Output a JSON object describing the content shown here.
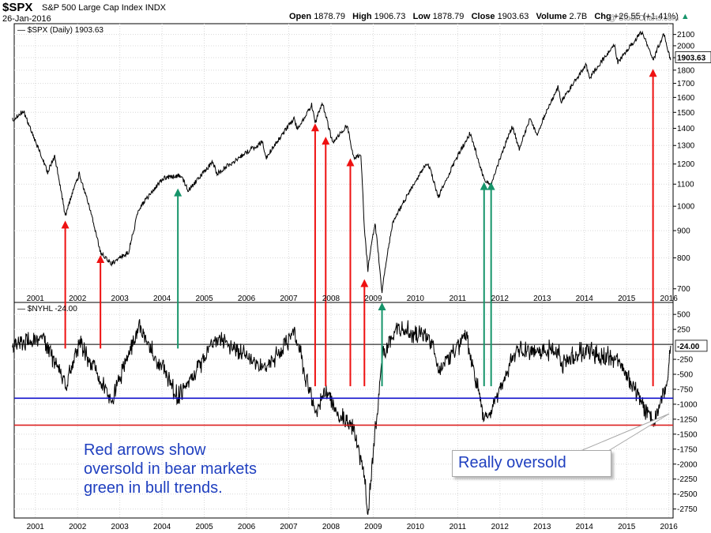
{
  "header": {
    "symbol": "$SPX",
    "name": "S&P 500 Large Cap Index",
    "exchange": "INDX",
    "date": "26-Jan-2016",
    "open_label": "Open",
    "open": "1878.79",
    "high_label": "High",
    "high": "1906.73",
    "low_label": "Low",
    "low": "1878.79",
    "close_label": "Close",
    "close": "1903.63",
    "volume_label": "Volume",
    "volume": "2.7B",
    "chg_label": "Chg",
    "chg": "+26.55 (+1.41%)",
    "watermark": "@ StockCharts.com"
  },
  "annotations": {
    "note_lines": [
      "Red arrows show",
      "oversold in bear markets",
      "green in bull trends."
    ],
    "callout": "Really oversold"
  },
  "colors": {
    "bear_arrow": "#ee1111",
    "bull_arrow": "#16946a",
    "blue_line": "#1111cc",
    "red_line": "#dd2222",
    "note_text": "#1f3fbf"
  },
  "chart_data": [
    {
      "type": "line",
      "legend": "$SPX (Daily) 1903.63",
      "last_label": "1903.63",
      "scale": "log",
      "ylim": [
        660,
        2200
      ],
      "y_ticks": [
        700,
        800,
        900,
        1000,
        1100,
        1200,
        1300,
        1400,
        1500,
        1600,
        1700,
        1800,
        1900,
        2000,
        2100
      ],
      "x_ticks": [
        "2001",
        "2002",
        "2003",
        "2004",
        "2005",
        "2006",
        "2007",
        "2008",
        "2009",
        "2010",
        "2011",
        "2012",
        "2013",
        "2014",
        "2015",
        "2016"
      ],
      "x": [
        "2000-06",
        "2000-09",
        "2001-01",
        "2001-04",
        "2001-06",
        "2001-09",
        "2002-01",
        "2002-07",
        "2002-10",
        "2003-03",
        "2003-06",
        "2004-01",
        "2004-06",
        "2004-08",
        "2005-03",
        "2005-04",
        "2006-05",
        "2006-06",
        "2007-02",
        "2007-03",
        "2007-07",
        "2007-08",
        "2007-10",
        "2008-01",
        "2008-05",
        "2008-07",
        "2008-09",
        "2008-10",
        "2008-11",
        "2009-01",
        "2009-03",
        "2009-06",
        "2010-04",
        "2010-07",
        "2011-04",
        "2011-08",
        "2011-10",
        "2012-04",
        "2012-06",
        "2012-09",
        "2012-11",
        "2013-05",
        "2013-06",
        "2014-01",
        "2014-02",
        "2014-09",
        "2014-10",
        "2015-05",
        "2015-08",
        "2015-11",
        "2016-01"
      ],
      "y": [
        1450,
        1510,
        1300,
        1160,
        1240,
        960,
        1150,
        820,
        780,
        820,
        990,
        1130,
        1140,
        1070,
        1210,
        1150,
        1320,
        1230,
        1460,
        1390,
        1550,
        1430,
        1565,
        1310,
        1420,
        1230,
        1250,
        900,
        760,
        930,
        690,
        930,
        1210,
        1040,
        1370,
        1120,
        1100,
        1410,
        1280,
        1460,
        1360,
        1670,
        1570,
        1840,
        1740,
        2010,
        1860,
        2130,
        1870,
        2110,
        1880
      ]
    },
    {
      "type": "line",
      "legend": "$NYHL -24.00",
      "last_label": "-24.00",
      "ylim": [
        -2900,
        700
      ],
      "y_ticks": [
        500,
        250,
        -250,
        -500,
        -750,
        -1000,
        -1250,
        -1500,
        -1750,
        -2000,
        -2250,
        -2500,
        -2750
      ],
      "x_ticks": [
        "2001",
        "2002",
        "2003",
        "2004",
        "2005",
        "2006",
        "2007",
        "2008",
        "2009",
        "2010",
        "2011",
        "2012",
        "2013",
        "2014",
        "2015",
        "2016"
      ],
      "x": [
        "2000-06",
        "2001-03",
        "2001-09",
        "2002-01",
        "2002-07",
        "2002-10",
        "2003-06",
        "2004-05",
        "2005-04",
        "2006-06",
        "2007-02",
        "2007-08",
        "2007-11",
        "2008-01",
        "2008-03",
        "2008-07",
        "2008-10",
        "2008-11",
        "2009-03",
        "2009-07",
        "2010-05",
        "2010-07",
        "2011-03",
        "2011-08",
        "2011-10",
        "2012-05",
        "2013-05",
        "2013-06",
        "2014-01",
        "2014-10",
        "2015-08",
        "2015-12",
        "2016-01"
      ],
      "y": [
        0,
        100,
        -700,
        50,
        -600,
        -950,
        300,
        -900,
        100,
        -400,
        200,
        -1100,
        -800,
        -1000,
        -1200,
        -1400,
        -2250,
        -2800,
        -200,
        250,
        100,
        -450,
        150,
        -1250,
        -1100,
        -100,
        -100,
        -300,
        -100,
        -250,
        -1300,
        -650,
        -24
      ],
      "reference_lines": [
        -900,
        -1350
      ],
      "zero_line": 0
    }
  ],
  "arrows": [
    {
      "date": "2001-09",
      "from": -70,
      "to": 940,
      "color": "bear"
    },
    {
      "date": "2002-07",
      "from": -70,
      "to": 810,
      "color": "bear"
    },
    {
      "date": "2004-05",
      "from": -70,
      "to": 1080,
      "color": "bull"
    },
    {
      "date": "2007-08",
      "from": -700,
      "to": 1430,
      "color": "bear"
    },
    {
      "date": "2007-11",
      "from": -700,
      "to": 1350,
      "color": "bear"
    },
    {
      "date": "2008-06",
      "from": -700,
      "to": 1230,
      "color": "bear"
    },
    {
      "date": "2008-10",
      "from": -700,
      "to": 730,
      "color": "bear"
    },
    {
      "date": "2009-03",
      "from": -700,
      "to": 660,
      "color": "bull"
    },
    {
      "date": "2011-08",
      "from": -700,
      "to": 1110,
      "color": "bull"
    },
    {
      "date": "2011-10",
      "from": -700,
      "to": 1110,
      "color": "bull"
    },
    {
      "date": "2015-08",
      "from": -700,
      "to": 1810,
      "color": "bear"
    }
  ]
}
